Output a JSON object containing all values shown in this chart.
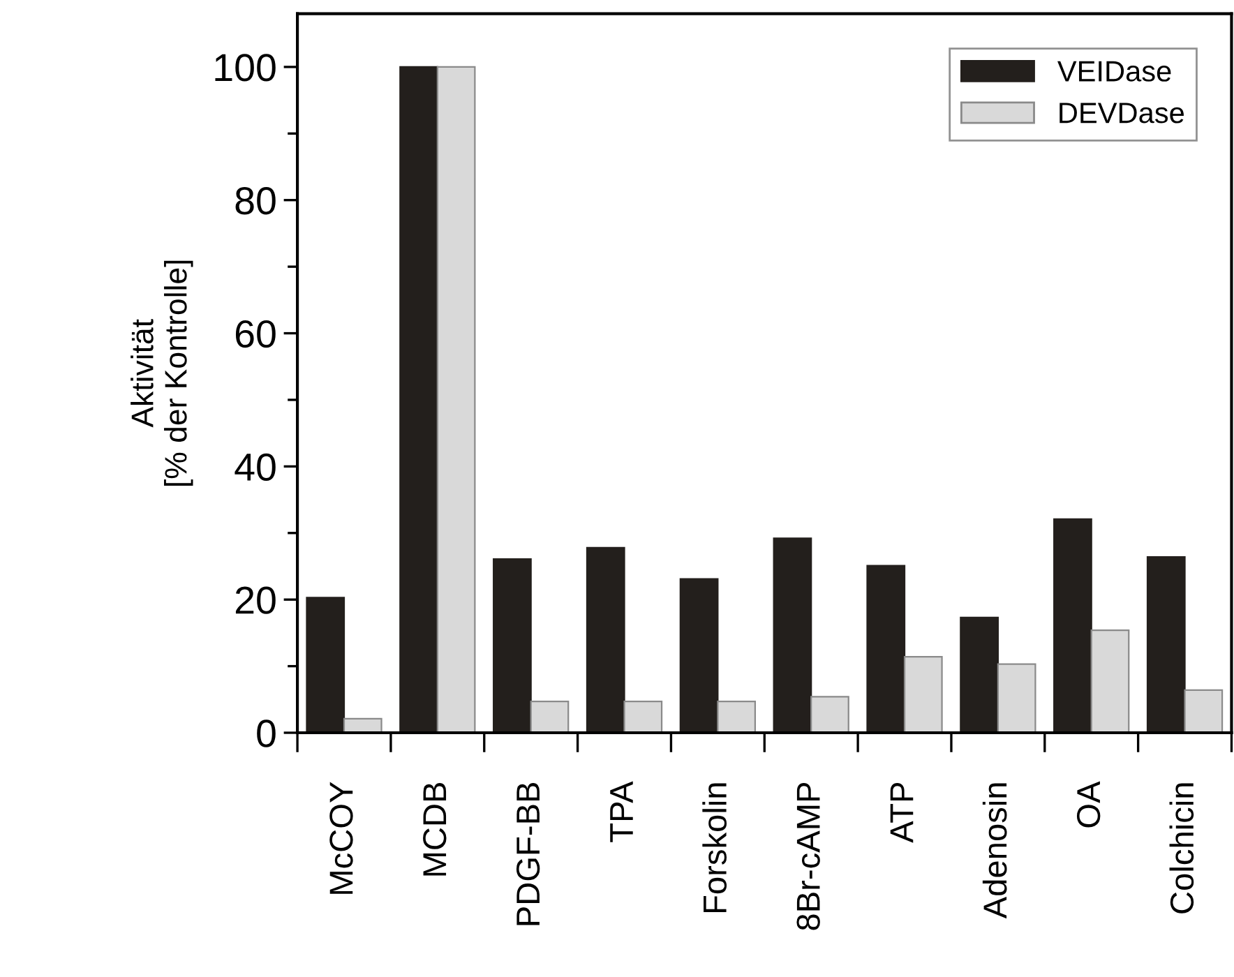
{
  "chart_data": {
    "type": "bar",
    "ylabel": "Aktivität\n[% der Kontrolle]",
    "categories": [
      "McCOY",
      "MCDB",
      "PDGF-BB",
      "TPA",
      "Forskolin",
      "8Br-cAMP",
      "ATP",
      "Adenosin",
      "OA",
      "Colchicin"
    ],
    "series": [
      {
        "name": "VEIDase",
        "color": "#231f1c",
        "values": [
          20.3,
          100,
          26.1,
          27.8,
          23.1,
          29.2,
          25.1,
          17.3,
          32.1,
          26.4
        ]
      },
      {
        "name": "DEVDase",
        "color": "#d9d9d9",
        "values": [
          2.1,
          100,
          4.7,
          4.7,
          4.7,
          5.4,
          11.4,
          10.3,
          15.4,
          6.4
        ]
      }
    ],
    "ylim": [
      0,
      108
    ],
    "yticks": [
      0,
      {
        "value": 10,
        "label": null
      },
      20,
      {
        "value": 30,
        "label": null
      },
      40,
      {
        "value": 50,
        "label": null
      },
      60,
      {
        "value": 70,
        "label": null
      },
      80,
      {
        "value": 90,
        "label": null
      },
      100
    ],
    "legend": "top right",
    "grid": false
  }
}
